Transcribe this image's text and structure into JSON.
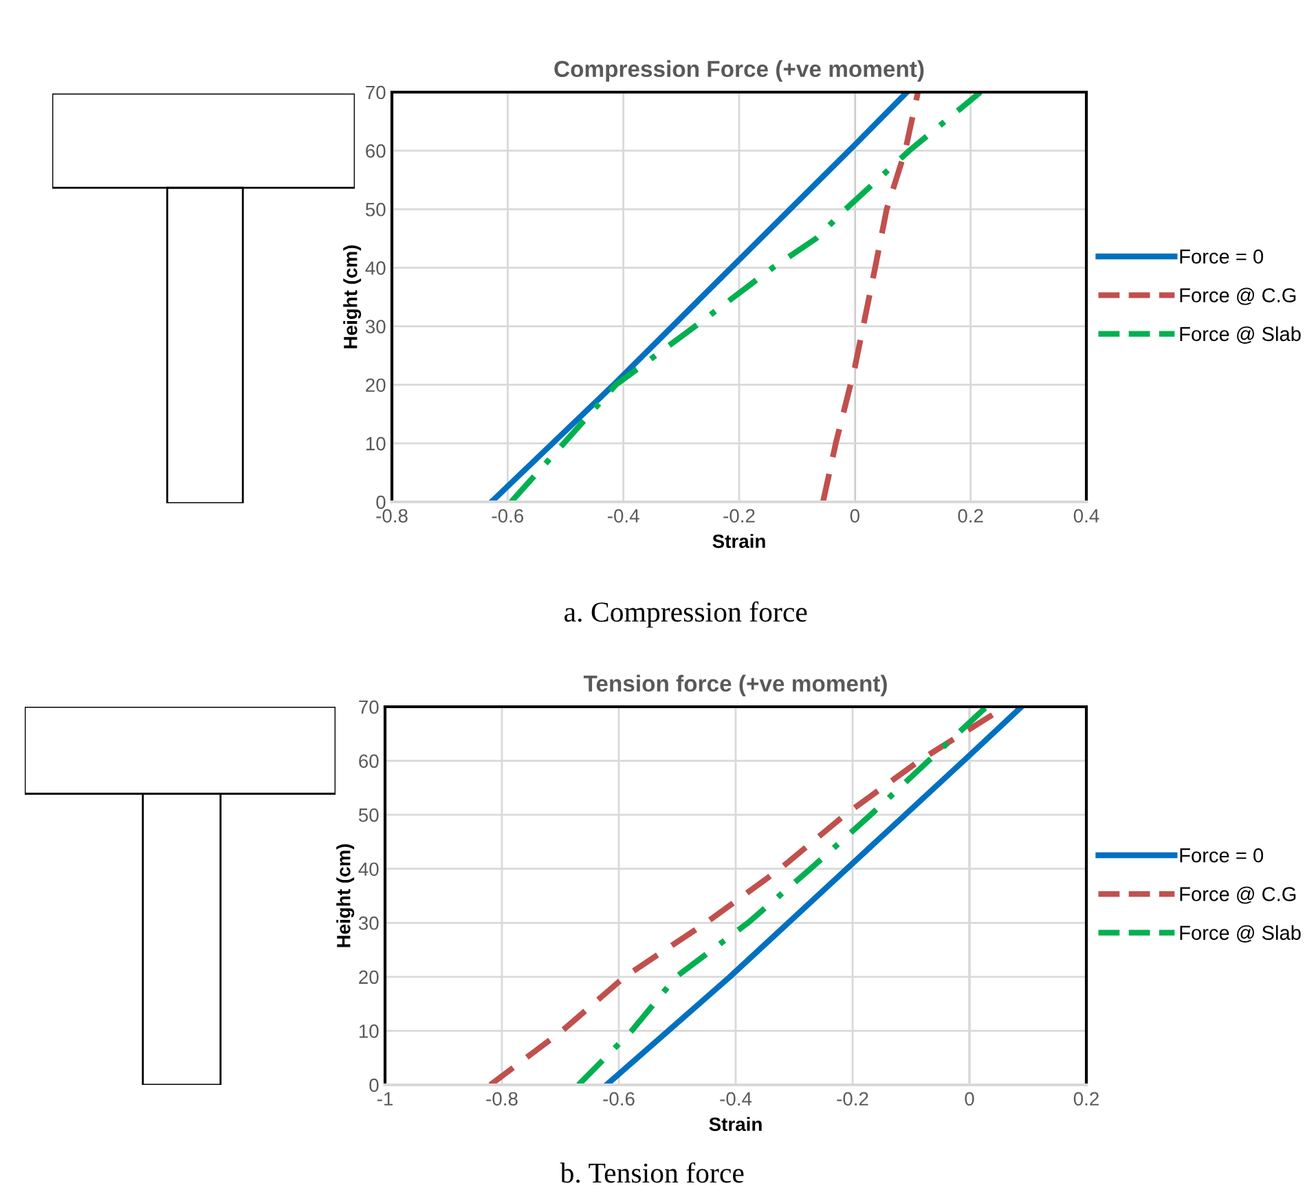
{
  "chart_data": [
    {
      "type": "line",
      "title": "Compression Force (+ve moment)",
      "xlabel": "Strain",
      "ylabel": "Height (cm)",
      "xlim": [
        -0.8,
        0.4
      ],
      "xticks": [
        -0.8,
        -0.6,
        -0.4,
        -0.2,
        0,
        0.2,
        0.4
      ],
      "ylim": [
        0,
        70
      ],
      "yticks": [
        0,
        10,
        20,
        30,
        40,
        50,
        60,
        70
      ],
      "grid": true,
      "legend": "right",
      "marker": "none",
      "series": [
        {
          "name": "Force = 0",
          "color": "#0070c0",
          "line_style": "solid",
          "x": [
            -0.628,
            -0.417,
            0,
            0.09
          ],
          "values": [
            0,
            20,
            61,
            70
          ]
        },
        {
          "name": "Force @ C.G",
          "color": "#c0504d",
          "line_style": "dashed",
          "x": [
            -0.055,
            -0.033,
            0,
            0.035,
            0.055,
            0.087,
            0.109
          ],
          "values": [
            0,
            10,
            23,
            40,
            50,
            60,
            70
          ]
        },
        {
          "name": "Force @ Slab",
          "color": "#00b050",
          "line_style": "dashdot",
          "x": [
            -0.594,
            -0.503,
            -0.413,
            -0.276,
            -0.142,
            -0.067,
            -0.016,
            0.094,
            0.217
          ],
          "values": [
            0,
            10,
            20,
            30,
            40,
            45,
            50,
            60,
            70
          ]
        }
      ],
      "annotations": [
        "a. Compression force"
      ]
    },
    {
      "type": "line",
      "title": "Tension force (+ve moment)",
      "xlabel": "Strain",
      "ylabel": "Height (cm)",
      "xlim": [
        -1,
        0.2
      ],
      "xticks": [
        -1,
        -0.8,
        -0.6,
        -0.4,
        -0.2,
        0,
        0.2
      ],
      "ylim": [
        0,
        70
      ],
      "yticks": [
        0,
        10,
        20,
        30,
        40,
        50,
        60,
        70
      ],
      "grid": true,
      "legend": "right",
      "marker": "none",
      "series": [
        {
          "name": "Force = 0",
          "color": "#0070c0",
          "line_style": "solid",
          "x": [
            -0.621,
            -0.41,
            -0.2,
            0,
            0.089
          ],
          "values": [
            0,
            20,
            41,
            61,
            70
          ]
        },
        {
          "name": "Force @ C.G",
          "color": "#c0504d",
          "line_style": "dashed",
          "x": [
            -0.82,
            -0.697,
            -0.59,
            -0.451,
            -0.324,
            -0.213,
            -0.086,
            0.061
          ],
          "values": [
            0,
            10,
            20,
            30,
            40,
            50,
            60,
            70
          ]
        },
        {
          "name": "Force @ Slab",
          "color": "#00b050",
          "line_style": "dashdot",
          "x": [
            -0.669,
            -0.578,
            -0.502,
            -0.379,
            -0.272,
            -0.169,
            -0.07,
            0.029
          ],
          "values": [
            0,
            10,
            20,
            30,
            40,
            50,
            60,
            70
          ]
        }
      ],
      "annotations": [
        "b. Tension force"
      ]
    }
  ]
}
